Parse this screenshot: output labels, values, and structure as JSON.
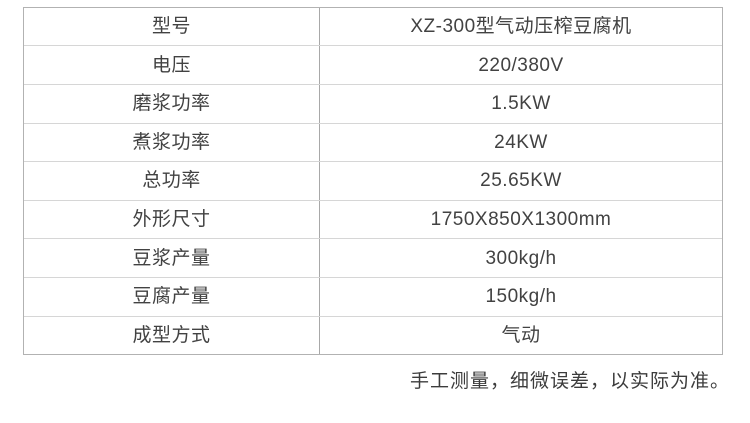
{
  "spec_table": {
    "rows": [
      {
        "label": "型号",
        "value": "XZ-300型气动压榨豆腐机"
      },
      {
        "label": "电压",
        "value": "220/380V"
      },
      {
        "label": "磨浆功率",
        "value": "1.5KW"
      },
      {
        "label": "煮浆功率",
        "value": "24KW"
      },
      {
        "label": "总功率",
        "value": "25.65KW"
      },
      {
        "label": "外形尺寸",
        "value": "1750X850X1300mm"
      },
      {
        "label": "豆浆产量",
        "value": "300kg/h"
      },
      {
        "label": "豆腐产量",
        "value": "150kg/h"
      },
      {
        "label": "成型方式",
        "value": "气动"
      }
    ]
  },
  "footer": {
    "note": "手工测量，细微误差，以实际为准。"
  },
  "colors": {
    "outer_border": "#b2b2b2",
    "row_divider": "#d6d6d6",
    "column_divider": "#a8a8a8",
    "text": "#424242",
    "background": "#ffffff"
  }
}
